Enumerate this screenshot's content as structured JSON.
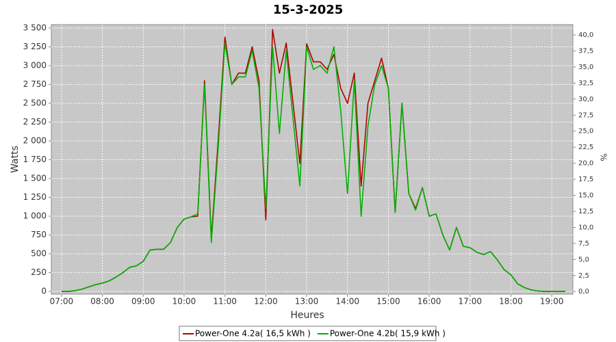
{
  "chart_data": {
    "type": "line",
    "title": "15-3-2025",
    "xlabel": "Heures",
    "ylabel": "Watts",
    "y2label": "%",
    "x": [
      "07:00",
      "07:10",
      "07:20",
      "07:30",
      "07:40",
      "07:50",
      "08:00",
      "08:10",
      "08:20",
      "08:30",
      "08:40",
      "08:50",
      "09:00",
      "09:10",
      "09:20",
      "09:30",
      "09:40",
      "09:50",
      "10:00",
      "10:10",
      "10:20",
      "10:30",
      "10:40",
      "10:50",
      "11:00",
      "11:10",
      "11:20",
      "11:30",
      "11:40",
      "11:50",
      "12:00",
      "12:10",
      "12:20",
      "12:30",
      "12:40",
      "12:50",
      "13:00",
      "13:10",
      "13:20",
      "13:30",
      "13:40",
      "13:50",
      "14:00",
      "14:10",
      "14:20",
      "14:30",
      "14:40",
      "14:50",
      "15:00",
      "15:10",
      "15:20",
      "15:30",
      "15:40",
      "15:50",
      "16:00",
      "16:10",
      "16:20",
      "16:30",
      "16:40",
      "16:50",
      "17:00",
      "17:10",
      "17:20",
      "17:30",
      "17:40",
      "17:50",
      "18:00",
      "18:10",
      "18:20",
      "18:30",
      "18:40",
      "18:50",
      "19:00",
      "19:10",
      "19:20"
    ],
    "series": [
      {
        "name": "Power-One 4.2a( 16,5 kWh )",
        "color": "#b00000",
        "values": [
          0,
          0,
          10,
          30,
          60,
          90,
          110,
          140,
          190,
          250,
          320,
          340,
          400,
          550,
          560,
          560,
          650,
          850,
          960,
          990,
          1000,
          2800,
          700,
          2000,
          3380,
          2750,
          2900,
          2900,
          3250,
          2800,
          950,
          3480,
          2900,
          3300,
          2500,
          1700,
          3290,
          3050,
          3050,
          2950,
          3150,
          2700,
          2500,
          2900,
          1400,
          2500,
          2800,
          3100,
          2700,
          1050,
          2500,
          1300,
          1100,
          1380,
          1000,
          1030,
          750,
          550,
          850,
          600,
          580,
          520,
          490,
          530,
          420,
          290,
          220,
          100,
          50,
          20,
          5,
          0,
          0,
          0,
          0
        ]
      },
      {
        "name": "Power-One 4.2b( 15,9 kWh )",
        "color": "#00b000",
        "values": [
          0,
          0,
          10,
          30,
          60,
          90,
          110,
          140,
          190,
          250,
          320,
          340,
          400,
          550,
          560,
          560,
          650,
          850,
          960,
          990,
          1030,
          2750,
          650,
          1900,
          3300,
          2750,
          2850,
          2850,
          3200,
          2700,
          1100,
          3250,
          2100,
          3200,
          2300,
          1400,
          3250,
          2950,
          3000,
          2900,
          3250,
          2400,
          1300,
          2800,
          1000,
          2200,
          2750,
          3000,
          2700,
          1050,
          2500,
          1300,
          1080,
          1380,
          1000,
          1030,
          750,
          550,
          850,
          600,
          580,
          520,
          490,
          530,
          420,
          290,
          220,
          100,
          50,
          20,
          5,
          0,
          0,
          0,
          0
        ]
      }
    ],
    "xlim": [
      "06:45",
      "19:31"
    ],
    "xticks": [
      "07:00",
      "08:00",
      "09:00",
      "10:00",
      "11:00",
      "12:00",
      "13:00",
      "14:00",
      "15:00",
      "16:00",
      "17:00",
      "18:00",
      "19:00"
    ],
    "ylim": [
      -36,
      3545
    ],
    "yticks": [
      0,
      250,
      500,
      750,
      {
        "value": 1000,
        "label": "1 000"
      },
      {
        "value": 1250,
        "label": "1 250"
      },
      {
        "value": 1500,
        "label": "1 500"
      },
      {
        "value": 1750,
        "label": "1 750"
      },
      {
        "value": 2000,
        "label": "2 000"
      },
      {
        "value": 2250,
        "label": "2 250"
      },
      {
        "value": 2500,
        "label": "2 500"
      },
      {
        "value": 2750,
        "label": "2 750"
      },
      {
        "value": 3000,
        "label": "3 000"
      },
      {
        "value": 3250,
        "label": "3 250"
      },
      {
        "value": 3500,
        "label": "3 500"
      }
    ],
    "y2lim": [
      -0.4,
      41.6
    ],
    "y2ticks": [
      {
        "value": 0,
        "label": "0,0"
      },
      {
        "value": 2.5,
        "label": "2,5"
      },
      {
        "value": 5,
        "label": "5,0"
      },
      {
        "value": 7.5,
        "label": "7,5"
      },
      {
        "value": 10,
        "label": "10,0"
      },
      {
        "value": 12.5,
        "label": "12,5"
      },
      {
        "value": 15,
        "label": "15,0"
      },
      {
        "value": 17.5,
        "label": "17,5"
      },
      {
        "value": 20,
        "label": "20,0"
      },
      {
        "value": 22.5,
        "label": "22,5"
      },
      {
        "value": 25,
        "label": "25,0"
      },
      {
        "value": 27.5,
        "label": "27,5"
      },
      {
        "value": 30,
        "label": "30,0"
      },
      {
        "value": 32.5,
        "label": "32,5"
      },
      {
        "value": 35,
        "label": "35,0"
      },
      {
        "value": 37.5,
        "label": "37,5"
      },
      {
        "value": 40,
        "label": "40,0"
      }
    ],
    "grid": true,
    "legend": "bottom"
  }
}
